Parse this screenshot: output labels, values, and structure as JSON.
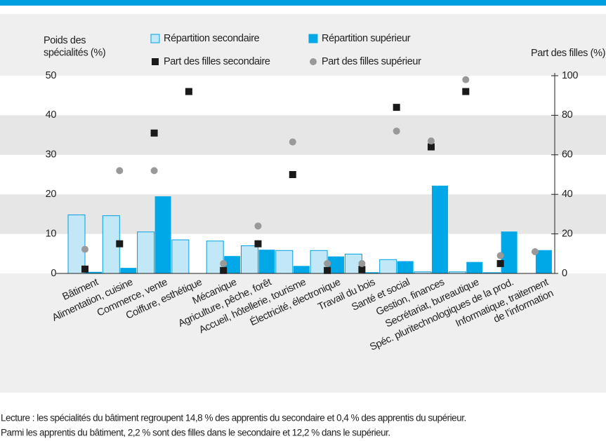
{
  "chart_data": {
    "type": "bar",
    "y_axis_label": "Poids des\nspécialités (%)",
    "y2_axis_label": "Part des filles (%)",
    "categories": [
      "Bâtiment",
      "Alimentation, cuisine",
      "Commerce, vente",
      "Coiffure, esthétique",
      "Mécanique",
      "Agriculture, pêche, forêt",
      "Accueil, hôtellerie, tourisme",
      "Électricité, électronique",
      "Travail du bois",
      "Santé et social",
      "Gestion, finances",
      "Secrétariat, bureautique",
      "Spéc. pluritechnologiques de la prod.",
      "Informatique, traitement\nde l’information"
    ],
    "series": [
      {
        "name": "Répartition secondaire",
        "color": "#c2e8f8",
        "edge": "#00a0e0",
        "kind": "bar",
        "values": [
          14.8,
          14.6,
          10.5,
          8.5,
          8.2,
          7.0,
          5.8,
          5.8,
          4.9,
          3.5,
          0.4,
          0.4,
          0.2,
          null
        ]
      },
      {
        "name": "Répartition supérieur",
        "color": "#00a8e8",
        "kind": "bar",
        "values": [
          0.4,
          1.4,
          19.5,
          null,
          4.4,
          6.0,
          1.9,
          4.3,
          0.3,
          3.1,
          22.2,
          2.9,
          10.6,
          5.9
        ]
      },
      {
        "name": "Part des filles secondaire",
        "color": "#1a1a1a",
        "kind": "square",
        "axis": "y2",
        "values": [
          2.2,
          15,
          71,
          92,
          1.5,
          15,
          50,
          1.5,
          2,
          84,
          64,
          92,
          5,
          null
        ]
      },
      {
        "name": "Part des filles supérieur",
        "color": "#999999",
        "kind": "circle",
        "axis": "y2",
        "values": [
          12.2,
          52,
          52,
          null,
          5,
          24,
          66.5,
          5,
          5,
          72,
          67,
          98,
          9,
          11
        ]
      }
    ],
    "ylim": [
      0,
      50
    ],
    "yticks": [
      0,
      10,
      20,
      30,
      40,
      50
    ],
    "y2lim": [
      0,
      100
    ],
    "y2ticks": [
      0,
      20,
      40,
      60,
      80,
      100
    ],
    "notes": [
      "Lecture : les spécialités du bâtiment regroupent 14,8 % des apprentis du secondaire et 0,4 % des apprentis du supérieur.",
      "Parmi les apprentis du bâtiment, 2,2 % sont des filles dans le secondaire et 12,2 % dans le supérieur."
    ]
  }
}
